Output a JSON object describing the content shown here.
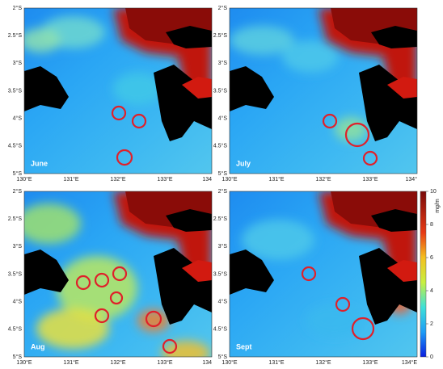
{
  "panels": [
    {
      "label": "June",
      "x_labels": [
        "130°E",
        "131°E",
        "132°E",
        "133°E",
        "134"
      ],
      "y_labels": [
        "2°S",
        "2.5°S",
        "3°S",
        "3.5°S",
        "4°S",
        "4.5°S",
        "5°S"
      ]
    },
    {
      "label": "July",
      "x_labels": [
        "130°E",
        "131°E",
        "132°E",
        "133°E",
        "134°"
      ],
      "y_labels": [
        "2°S",
        "2.5°S",
        "3°S",
        "3.5°S",
        "4°S",
        "4.5°S",
        "5°S"
      ]
    },
    {
      "label": "Aug",
      "x_labels": [
        "130°E",
        "131°E",
        "132°E",
        "133°E",
        "134"
      ],
      "y_labels": [
        "2°S",
        "2.5°S",
        "3°S",
        "3.5°S",
        "4°S",
        "4.5°S",
        "5°S"
      ]
    },
    {
      "label": "Sept",
      "x_labels": [
        "130°E",
        "131°E",
        "132°E",
        "133°E",
        "134°E"
      ],
      "y_labels": [
        "2°S",
        "2.5°S",
        "3°S",
        "3.5°S",
        "4°S",
        "4.5°S",
        "5°S"
      ]
    }
  ],
  "colorbar": {
    "ticks": [
      0,
      2,
      4,
      6,
      8,
      10
    ],
    "unit": "mg/m"
  }
}
